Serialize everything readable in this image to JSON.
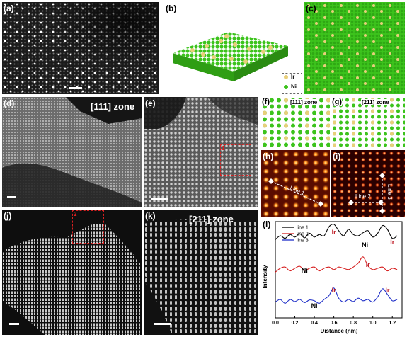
{
  "panels": {
    "a": {
      "label": "(a)"
    },
    "b": {
      "label": "(b)",
      "legend": [
        {
          "element": "Ir",
          "color": "#e8cf7a"
        },
        {
          "element": "Ni",
          "color": "#3cc31c"
        }
      ]
    },
    "c": {
      "label": "(c)"
    },
    "d": {
      "label": "(d)",
      "zone": "[111] zone"
    },
    "e": {
      "label": "(e)",
      "roi": "1"
    },
    "f": {
      "label": "(f)",
      "zone": "[111] zone"
    },
    "g": {
      "label": "(g)",
      "zone": "[211] zone"
    },
    "h": {
      "label": "(h)",
      "line": "Line 1"
    },
    "i": {
      "label": "(i)",
      "line2": "Line 2",
      "line3": "Line 3"
    },
    "j": {
      "label": "(j)",
      "roi": "2"
    },
    "k": {
      "label": "(k)",
      "zone": "[211] zone"
    },
    "l": {
      "label": "(l)"
    }
  },
  "colors": {
    "ni": "#3cc31c",
    "ir": "#e8cf7a",
    "roi": "#d62020",
    "ir_text": "#c0202a"
  },
  "chart_data": {
    "type": "line",
    "xlabel": "Distance (nm)",
    "ylabel": "Intensity",
    "xlim": [
      0.0,
      1.3
    ],
    "xticks": [
      "0.0",
      "0.2",
      "0.4",
      "0.6",
      "0.8",
      "1.0",
      "1.2"
    ],
    "series": [
      {
        "name": "line 1",
        "color": "#000000",
        "x": [
          0.0,
          0.05,
          0.1,
          0.15,
          0.2,
          0.25,
          0.3,
          0.35,
          0.4,
          0.45,
          0.5,
          0.55,
          0.6,
          0.65,
          0.7,
          0.75,
          0.8,
          0.85,
          0.9,
          0.95,
          1.0,
          1.05,
          1.1,
          1.15,
          1.2,
          1.25
        ],
        "y": [
          0.35,
          0.5,
          0.4,
          0.55,
          0.45,
          0.58,
          0.42,
          0.6,
          0.45,
          0.55,
          0.5,
          0.85,
          0.95,
          0.7,
          0.5,
          0.75,
          0.55,
          0.5,
          0.62,
          0.7,
          0.45,
          0.6,
          0.9,
          0.75,
          0.4,
          0.5
        ]
      },
      {
        "name": "line 2",
        "color": "#d62020",
        "x": [
          0.0,
          0.05,
          0.1,
          0.15,
          0.2,
          0.25,
          0.3,
          0.35,
          0.4,
          0.45,
          0.5,
          0.55,
          0.6,
          0.65,
          0.7,
          0.75,
          0.8,
          0.85,
          0.9,
          0.95,
          1.0,
          1.05,
          1.1,
          1.15,
          1.2,
          1.25
        ],
        "y": [
          0.35,
          0.5,
          0.55,
          0.4,
          0.5,
          0.58,
          0.42,
          0.5,
          0.55,
          0.4,
          0.5,
          0.55,
          0.45,
          0.55,
          0.5,
          0.45,
          0.55,
          0.7,
          0.95,
          0.6,
          0.45,
          0.5,
          0.55,
          0.4,
          0.5,
          0.45
        ]
      },
      {
        "name": "line 3",
        "color": "#2030c8",
        "x": [
          0.0,
          0.05,
          0.1,
          0.15,
          0.2,
          0.25,
          0.3,
          0.35,
          0.4,
          0.45,
          0.5,
          0.55,
          0.6,
          0.65,
          0.7,
          0.75,
          0.8,
          0.85,
          0.9,
          0.95,
          1.0,
          1.05,
          1.1,
          1.15,
          1.2,
          1.25
        ],
        "y": [
          0.4,
          0.5,
          0.35,
          0.5,
          0.42,
          0.5,
          0.38,
          0.48,
          0.45,
          0.35,
          0.5,
          0.65,
          0.95,
          0.55,
          0.4,
          0.5,
          0.42,
          0.55,
          0.45,
          0.5,
          0.4,
          0.6,
          0.92,
          0.7,
          0.45,
          0.5
        ]
      }
    ],
    "annotations": {
      "line1": [
        "Ir",
        "Ni",
        "Ir"
      ],
      "line2": [
        "Ni",
        "Ir"
      ],
      "line3": [
        "Ir",
        "Ni",
        "Ir"
      ]
    }
  }
}
